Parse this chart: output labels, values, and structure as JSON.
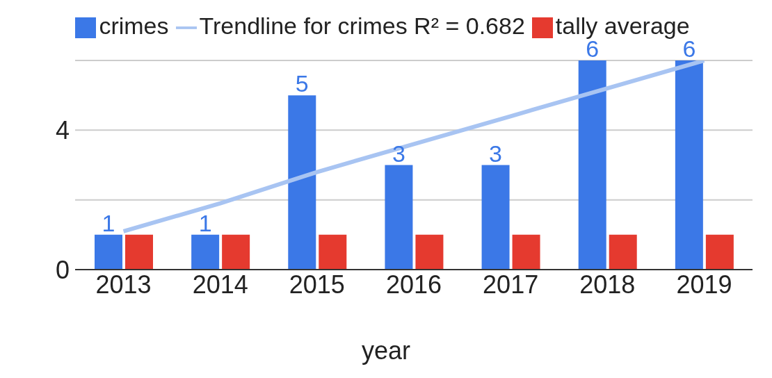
{
  "chart_data": {
    "type": "bar",
    "xlabel": "year",
    "categories": [
      "2013",
      "2014",
      "2015",
      "2016",
      "2017",
      "2018",
      "2019"
    ],
    "series": [
      {
        "name": "crimes",
        "color": "#3b78e7",
        "values": [
          1,
          1,
          5,
          3,
          3,
          6,
          6
        ],
        "value_labels": [
          "1",
          "1",
          "5",
          "3",
          "3",
          "6",
          "6"
        ]
      },
      {
        "name": "Trendline for crimes R² = 0.682",
        "type": "line",
        "color": "#a8c4f2",
        "values": [
          1.1,
          1.9,
          2.8,
          3.6,
          4.4,
          5.2,
          6.0
        ]
      },
      {
        "name": "tally average",
        "color": "#e53a2f",
        "values": [
          1,
          1,
          1,
          1,
          1,
          1,
          1
        ]
      }
    ],
    "ylim": [
      0,
      6
    ],
    "yticks": [
      0,
      {
        "value": 2,
        "label": null
      },
      4,
      {
        "value": 6,
        "label": null
      }
    ],
    "grid": "y",
    "legend": "top"
  }
}
